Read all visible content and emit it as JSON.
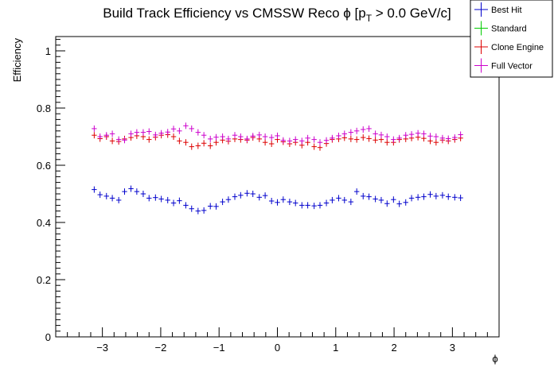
{
  "chart_data": {
    "type": "scatter",
    "title": "Build Track Efficiency vs CMSSW Reco ϕ [p",
    "title_sub": "T",
    "title_tail": " > 0.0 GeV/c]",
    "xlabel": "ϕ",
    "ylabel": "Efficiency",
    "xlim": [
      -3.8,
      3.8
    ],
    "ylim": [
      0,
      1.05
    ],
    "xticks": [
      -3,
      -2,
      -1,
      0,
      1,
      2,
      3
    ],
    "xtick_labels": [
      "−3",
      "−2",
      "−1",
      "0",
      "1",
      "2",
      "3"
    ],
    "yticks": [
      0,
      0.2,
      0.4,
      0.6,
      0.8,
      1
    ],
    "ytick_labels": [
      "0",
      "0.2",
      "0.4",
      "0.6",
      "0.8",
      "1"
    ],
    "legend_position": "top-right",
    "x": [
      -3.14,
      -3.04,
      -2.93,
      -2.83,
      -2.72,
      -2.62,
      -2.51,
      -2.41,
      -2.3,
      -2.2,
      -2.09,
      -1.99,
      -1.88,
      -1.78,
      -1.68,
      -1.57,
      -1.47,
      -1.36,
      -1.26,
      -1.15,
      -1.05,
      -0.94,
      -0.84,
      -0.73,
      -0.63,
      -0.52,
      -0.42,
      -0.31,
      -0.21,
      -0.1,
      0.0,
      0.1,
      0.21,
      0.31,
      0.42,
      0.52,
      0.63,
      0.73,
      0.84,
      0.94,
      1.05,
      1.15,
      1.26,
      1.36,
      1.47,
      1.57,
      1.68,
      1.78,
      1.88,
      1.99,
      2.09,
      2.2,
      2.3,
      2.41,
      2.51,
      2.62,
      2.72,
      2.83,
      2.93,
      3.04,
      3.14
    ],
    "series": [
      {
        "name": "Best Hit",
        "color": "#0000cc",
        "values": [
          0.515,
          0.497,
          0.492,
          0.485,
          0.478,
          0.508,
          0.518,
          0.508,
          0.5,
          0.485,
          0.487,
          0.482,
          0.478,
          0.468,
          0.476,
          0.46,
          0.448,
          0.44,
          0.442,
          0.457,
          0.456,
          0.472,
          0.48,
          0.49,
          0.495,
          0.502,
          0.5,
          0.488,
          0.494,
          0.475,
          0.47,
          0.48,
          0.472,
          0.468,
          0.46,
          0.46,
          0.458,
          0.46,
          0.468,
          0.478,
          0.485,
          0.478,
          0.472,
          0.508,
          0.492,
          0.49,
          0.482,
          0.478,
          0.466,
          0.48,
          0.465,
          0.47,
          0.485,
          0.488,
          0.49,
          0.498,
          0.492,
          0.495,
          0.49,
          0.488,
          0.486
        ]
      },
      {
        "name": "Standard",
        "color": "#00cc00",
        "values": []
      },
      {
        "name": "Clone Engine",
        "color": "#dd0000",
        "values": [
          0.705,
          0.693,
          0.7,
          0.685,
          0.683,
          0.692,
          0.697,
          0.703,
          0.7,
          0.69,
          0.698,
          0.705,
          0.707,
          0.7,
          0.685,
          0.68,
          0.665,
          0.668,
          0.677,
          0.668,
          0.68,
          0.688,
          0.684,
          0.692,
          0.69,
          0.688,
          0.697,
          0.692,
          0.68,
          0.675,
          0.69,
          0.682,
          0.675,
          0.68,
          0.67,
          0.68,
          0.665,
          0.662,
          0.676,
          0.69,
          0.692,
          0.696,
          0.692,
          0.69,
          0.697,
          0.693,
          0.688,
          0.69,
          0.68,
          0.68,
          0.69,
          0.692,
          0.695,
          0.698,
          0.694,
          0.685,
          0.68,
          0.688,
          0.685,
          0.69,
          0.695
        ]
      },
      {
        "name": "Full Vector",
        "color": "#cc00cc",
        "values": [
          0.728,
          0.7,
          0.705,
          0.71,
          0.69,
          0.688,
          0.71,
          0.715,
          0.715,
          0.718,
          0.706,
          0.712,
          0.716,
          0.727,
          0.72,
          0.738,
          0.728,
          0.715,
          0.705,
          0.692,
          0.698,
          0.7,
          0.692,
          0.705,
          0.7,
          0.692,
          0.702,
          0.706,
          0.7,
          0.697,
          0.703,
          0.687,
          0.685,
          0.69,
          0.685,
          0.695,
          0.69,
          0.68,
          0.687,
          0.695,
          0.703,
          0.71,
          0.715,
          0.72,
          0.725,
          0.728,
          0.71,
          0.706,
          0.7,
          0.69,
          0.695,
          0.705,
          0.708,
          0.712,
          0.71,
          0.702,
          0.7,
          0.695,
          0.693,
          0.697,
          0.707
        ]
      }
    ]
  }
}
